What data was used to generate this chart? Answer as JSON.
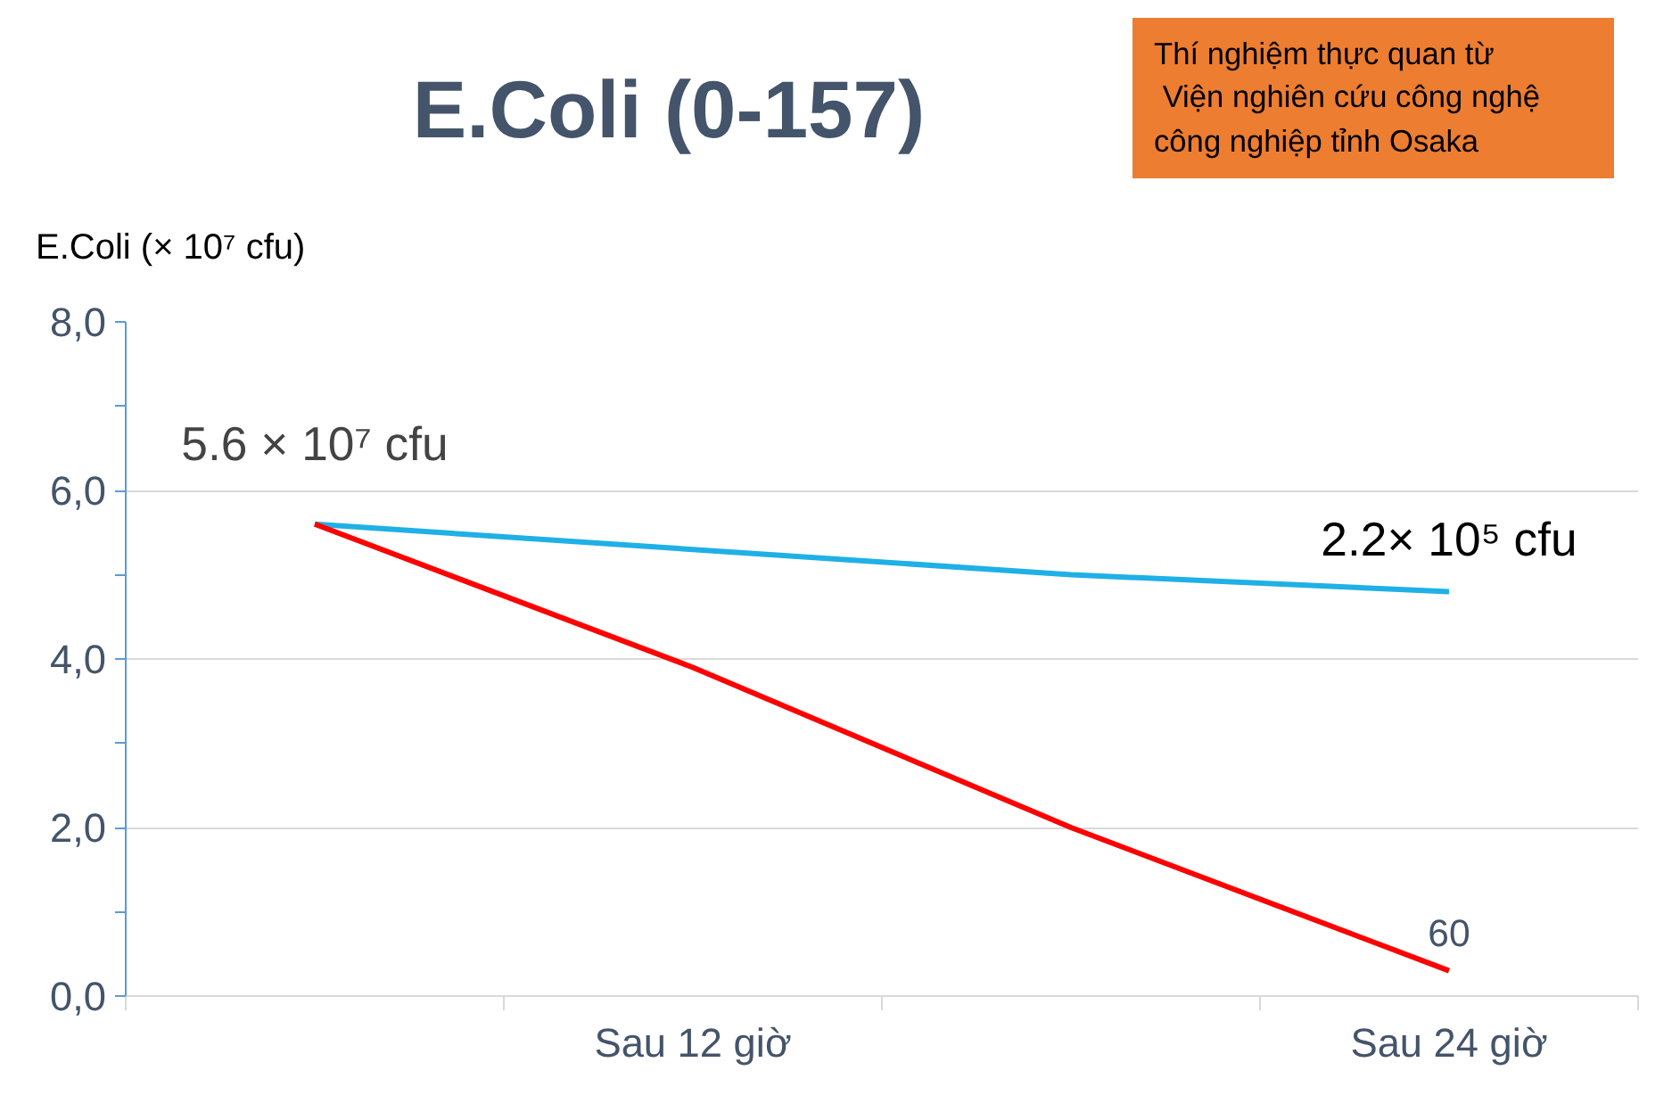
{
  "chart_data": {
    "type": "line",
    "title": "E.Coli (0-157)",
    "ylabel": "E.Coli (× 10⁷ cfu)",
    "categories": [
      null,
      "Sau 12 giờ",
      null,
      "Sau 24 giờ"
    ],
    "series": [
      {
        "color": "#1fb0e6",
        "values": [
          5.6,
          5.3,
          5.0,
          4.8
        ]
      },
      {
        "color": "#ff0000",
        "values": [
          5.6,
          3.9,
          2.0,
          0.3
        ]
      }
    ],
    "ylim": [
      0,
      8
    ],
    "yticks": [
      {
        "value": 0,
        "label": "0,0"
      },
      {
        "value": 2,
        "label": "2,0"
      },
      {
        "value": 4,
        "label": "4,0"
      },
      {
        "value": 6,
        "label": "6,0"
      },
      {
        "value": 8,
        "label": "8,0"
      }
    ],
    "grid": "y",
    "marker": "none",
    "line_style": "solid",
    "annotations": [
      "5.6 × 10⁷ cfu",
      {
        "text": "2.2× 10⁵ cfu",
        "x": "Sau 24 giờ",
        "y": 4.8
      },
      {
        "text": "60",
        "x": "Sau 24 giờ",
        "y": 0.3
      },
      "Thí nghiệm thực quan từ\n Viện nghiên cứu công nghệ\ncông nghiệp tỉnh Osaka"
    ]
  }
}
